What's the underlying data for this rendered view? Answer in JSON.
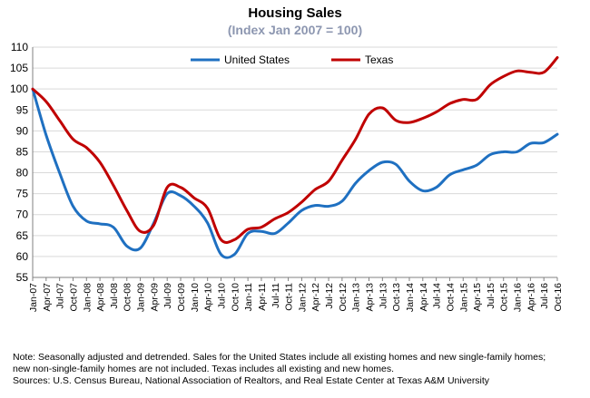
{
  "chart_data": {
    "type": "line",
    "title": "Housing Sales",
    "subtitle": "(Index Jan 2007 = 100)",
    "ylim": [
      55,
      110
    ],
    "yticks": [
      55,
      60,
      65,
      70,
      75,
      80,
      85,
      90,
      95,
      100,
      105,
      110
    ],
    "grid": true,
    "legend": "top-center",
    "categories": [
      "Jan-07",
      "Apr-07",
      "Jul-07",
      "Oct-07",
      "Jan-08",
      "Apr-08",
      "Jul-08",
      "Oct-08",
      "Jan-09",
      "Apr-09",
      "Jul-09",
      "Oct-09",
      "Jan-10",
      "Apr-10",
      "Jul-10",
      "Oct-10",
      "Jan-11",
      "Apr-11",
      "Jul-11",
      "Oct-11",
      "Jan-12",
      "Apr-12",
      "Jul-12",
      "Oct-12",
      "Jan-13",
      "Apr-13",
      "Jul-13",
      "Oct-13",
      "Jan-14",
      "Apr-14",
      "Jul-14",
      "Oct-14",
      "Jan-15",
      "Apr-15",
      "Jul-15",
      "Oct-15",
      "Jan-16",
      "Apr-16",
      "Jul-16",
      "Oct-16"
    ],
    "series": [
      {
        "name": "United States",
        "color": "#1f70c1",
        "values": [
          100,
          89,
          80,
          72,
          68.5,
          67.8,
          67,
          62.5,
          62,
          68,
          75,
          74.5,
          72,
          68,
          60.5,
          60.5,
          65.5,
          66,
          65.5,
          68,
          71,
          72.2,
          72,
          73.2,
          77.5,
          80.5,
          82.5,
          82,
          78,
          75.7,
          76.5,
          79.5,
          80.7,
          81.8,
          84.3,
          85,
          85,
          87,
          87.2,
          89.2
        ]
      },
      {
        "name": "Texas",
        "color": "#c00000",
        "values": [
          100,
          97,
          92.5,
          88,
          86,
          82.5,
          77,
          71,
          66,
          67.5,
          76.5,
          76.5,
          74,
          71.5,
          64,
          64,
          66.5,
          67,
          69,
          70.5,
          73,
          76,
          78,
          83,
          88,
          94,
          95.5,
          92.5,
          92,
          93,
          94.5,
          96.5,
          97.5,
          97.5,
          101,
          103,
          104.3,
          104,
          104,
          107.5
        ]
      }
    ],
    "notes": [
      "Note: Seasonally adjusted and detrended. Sales for the United States include all existing homes and new single-family homes;",
      "new non-single-family homes are not included. Texas includes all existing and new homes.",
      "Sources: U.S. Census Bureau, National Association of Realtors, and Real Estate Center at Texas A&M University"
    ]
  }
}
